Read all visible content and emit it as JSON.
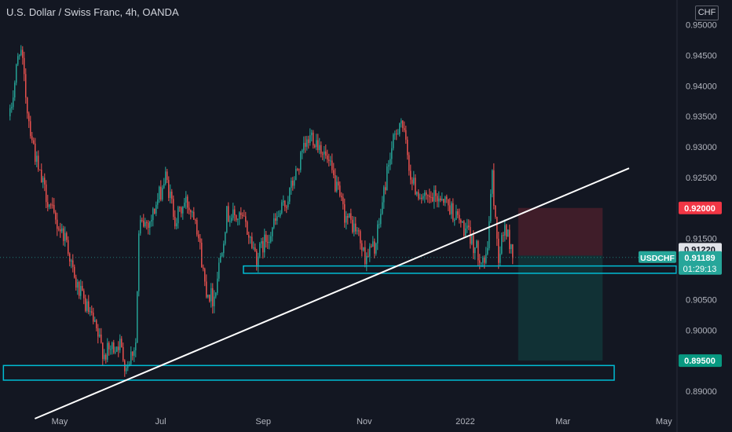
{
  "header": {
    "title": "U.S. Dollar / Swiss Franc, 4h, OANDA",
    "currency": "CHF"
  },
  "colors": {
    "background": "#131722",
    "up": "#26a69a",
    "down": "#ef5350",
    "zone": "#00bcd4",
    "trendline": "#ffffff",
    "stop_box": "#f23645",
    "target_box": "#089981",
    "axis_text": "#b2b5be"
  },
  "chart_data": {
    "type": "candlestick",
    "symbol": "USDCHF",
    "ylim": [
      0.886,
      0.953
    ],
    "y_ticks": [
      "0.95000",
      "0.94500",
      "0.94000",
      "0.93500",
      "0.93000",
      "0.92500",
      "0.91500",
      "0.90500",
      "0.90000",
      "0.89000"
    ],
    "y_tick_values": [
      0.95,
      0.945,
      0.94,
      0.935,
      0.93,
      0.925,
      0.915,
      0.905,
      0.9,
      0.89
    ],
    "x_labels": [
      "May",
      "Jul",
      "Sep",
      "Nov",
      "2022",
      "Mar",
      "May"
    ],
    "x_label_dates": [
      "2021-05-01",
      "2021-07-01",
      "2021-09-01",
      "2021-11-01",
      "2022-01-01",
      "2022-03-01",
      "2022-05-01"
    ],
    "price_path": [
      [
        "2021-04-01",
        0.935
      ],
      [
        "2021-04-07",
        0.947
      ],
      [
        "2021-04-12",
        0.935
      ],
      [
        "2021-04-18",
        0.926
      ],
      [
        "2021-04-28",
        0.918
      ],
      [
        "2021-05-05",
        0.915
      ],
      [
        "2021-05-10",
        0.908
      ],
      [
        "2021-05-20",
        0.902
      ],
      [
        "2021-05-28",
        0.896
      ],
      [
        "2021-06-06",
        0.898
      ],
      [
        "2021-06-10",
        0.894
      ],
      [
        "2021-06-16",
        0.898
      ],
      [
        "2021-06-18",
        0.917
      ],
      [
        "2021-06-25",
        0.918
      ],
      [
        "2021-07-04",
        0.925
      ],
      [
        "2021-07-10",
        0.918
      ],
      [
        "2021-07-16",
        0.921
      ],
      [
        "2021-07-22",
        0.919
      ],
      [
        "2021-07-28",
        0.907
      ],
      [
        "2021-08-02",
        0.905
      ],
      [
        "2021-08-10",
        0.919
      ],
      [
        "2021-08-20",
        0.918
      ],
      [
        "2021-08-28",
        0.912
      ],
      [
        "2021-09-05",
        0.916
      ],
      [
        "2021-09-15",
        0.921
      ],
      [
        "2021-09-25",
        0.929
      ],
      [
        "2021-09-30",
        0.932
      ],
      [
        "2021-10-06",
        0.93
      ],
      [
        "2021-10-12",
        0.926
      ],
      [
        "2021-10-20",
        0.919
      ],
      [
        "2021-10-28",
        0.916
      ],
      [
        "2021-11-01",
        0.912
      ],
      [
        "2021-11-08",
        0.914
      ],
      [
        "2021-11-16",
        0.928
      ],
      [
        "2021-11-23",
        0.935
      ],
      [
        "2021-11-30",
        0.924
      ],
      [
        "2021-12-08",
        0.921
      ],
      [
        "2021-12-18",
        0.922
      ],
      [
        "2021-12-28",
        0.918
      ],
      [
        "2022-01-04",
        0.915
      ],
      [
        "2022-01-08",
        0.913
      ],
      [
        "2022-01-14",
        0.911
      ],
      [
        "2022-01-17",
        0.926
      ],
      [
        "2022-01-21",
        0.912
      ],
      [
        "2022-01-25",
        0.917
      ],
      [
        "2022-01-30",
        0.912
      ]
    ],
    "drawings": {
      "trendline": {
        "from": [
          "2021-04-16",
          0.8855
        ],
        "to": [
          "2022-04-10",
          0.9265
        ]
      },
      "support_zone_upper": {
        "from": "2021-08-20",
        "to": "2022-05-31",
        "top": 0.9105,
        "bottom": 0.9093
      },
      "support_zone_lower": {
        "from": "2021-03-28",
        "to": "2022-04-01",
        "top": 0.8942,
        "bottom": 0.8918
      },
      "stop_box": {
        "from": "2022-02-02",
        "to": "2022-03-25",
        "top": 0.92,
        "bottom": 0.9122
      },
      "target_box": {
        "from": "2022-02-02",
        "to": "2022-03-25",
        "top": 0.9122,
        "bottom": 0.895
      },
      "current_price_line": 0.91189
    },
    "price_labels": {
      "stop": {
        "value": "0.92000",
        "price": 0.92
      },
      "entry": {
        "value": "0.91220",
        "price": 0.9122
      },
      "target": {
        "value": "0.89500",
        "price": 0.895
      },
      "current": {
        "symbol": "USDCHF",
        "value": "0.91189",
        "countdown": "01:29:13",
        "price": 0.91189
      }
    }
  }
}
